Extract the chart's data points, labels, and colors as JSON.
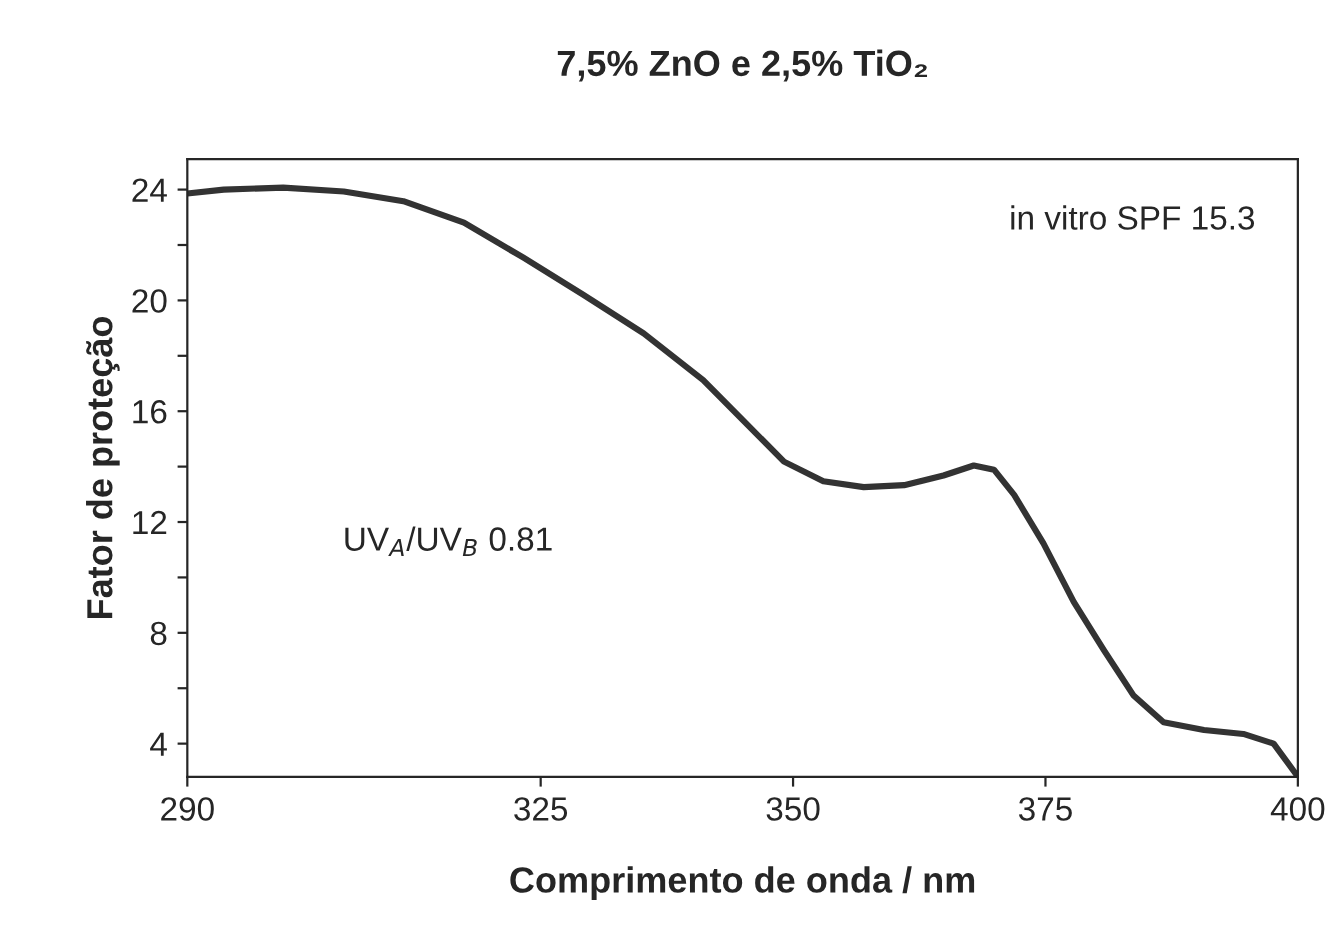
{
  "chart_data": {
    "type": "line",
    "title": "7,5% ZnO e 2,5% TiO₂",
    "xlabel": "Comprimento de onda / nm",
    "ylabel": "Fator de proteção",
    "x": [
      290,
      293.6,
      299.5,
      305.5,
      311.4,
      317.4,
      323.3,
      329.2,
      335.2,
      341.1,
      345.1,
      349.1,
      353.0,
      357.0,
      361.0,
      364.9,
      367.9,
      369.9,
      371.9,
      374.8,
      377.8,
      380.8,
      383.7,
      386.7,
      390.7,
      394.6,
      397.6,
      400
    ],
    "series": [
      {
        "color": "#333333",
        "values": [
          23.86,
          24.0,
          24.07,
          23.93,
          23.58,
          22.81,
          21.54,
          20.21,
          18.81,
          17.12,
          15.65,
          14.18,
          13.47,
          13.26,
          13.33,
          13.68,
          14.04,
          13.89,
          12.98,
          11.23,
          9.12,
          7.37,
          5.75,
          4.77,
          4.49,
          4.35,
          4.0,
          2.81
        ]
      }
    ],
    "xlim": [
      290,
      400
    ],
    "xticks": [
      290,
      325,
      350,
      375,
      400
    ],
    "ylim": [
      2.8,
      25.1
    ],
    "yticks": [
      4,
      {
        "value": 6,
        "label": null
      },
      8,
      {
        "value": 10,
        "label": null
      },
      12,
      {
        "value": 14,
        "label": null
      },
      16,
      {
        "value": 18,
        "label": null
      },
      20,
      {
        "value": 22,
        "label": null
      },
      24
    ],
    "grid": false,
    "marker": "none",
    "line_style": "solid",
    "annotations": [
      "in vitro SPF 15.3",
      "UV$_{A}$/UV$_{B}$ 0.81"
    ]
  }
}
